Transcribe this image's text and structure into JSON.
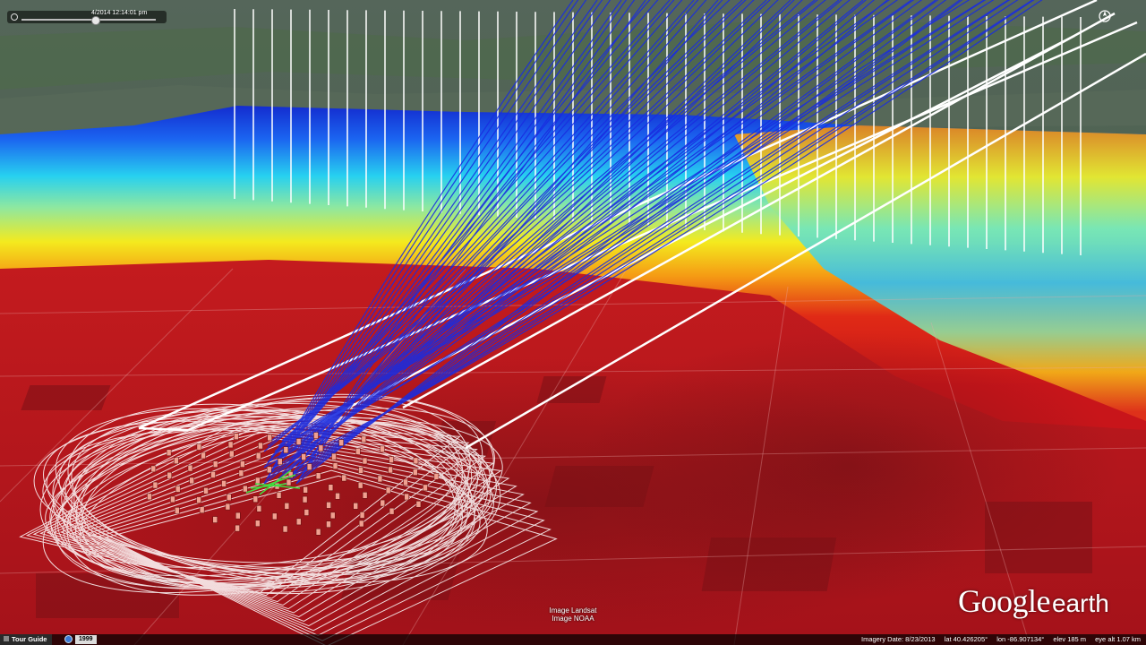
{
  "time_slider": {
    "date_label": "4/2014  12:14:01 pm"
  },
  "attribution": {
    "line1": "Image Landsat",
    "line2": "Image NOAA"
  },
  "logo": {
    "google": "Google",
    "earth": "earth"
  },
  "status_bar": {
    "tour_guide": "Tour Guide",
    "year": "1999",
    "imagery_date": "Imagery Date: 8/23/2013",
    "lat": "lat   40.426205°",
    "lon": "lon  -86.907134°",
    "elev": "elev   185 m",
    "eye_alt": "eye alt   1.07 km"
  },
  "icons": {
    "compass": "north-arrow-icon",
    "globe": "globe-icon",
    "clock": "clock-icon"
  },
  "colors": {
    "plume_low": "#c8151a",
    "plume_mid": "#f4e41e",
    "plume_high": "#1b3ee6",
    "track_lines": "#1a2de0",
    "wireframe": "#ffffff"
  }
}
